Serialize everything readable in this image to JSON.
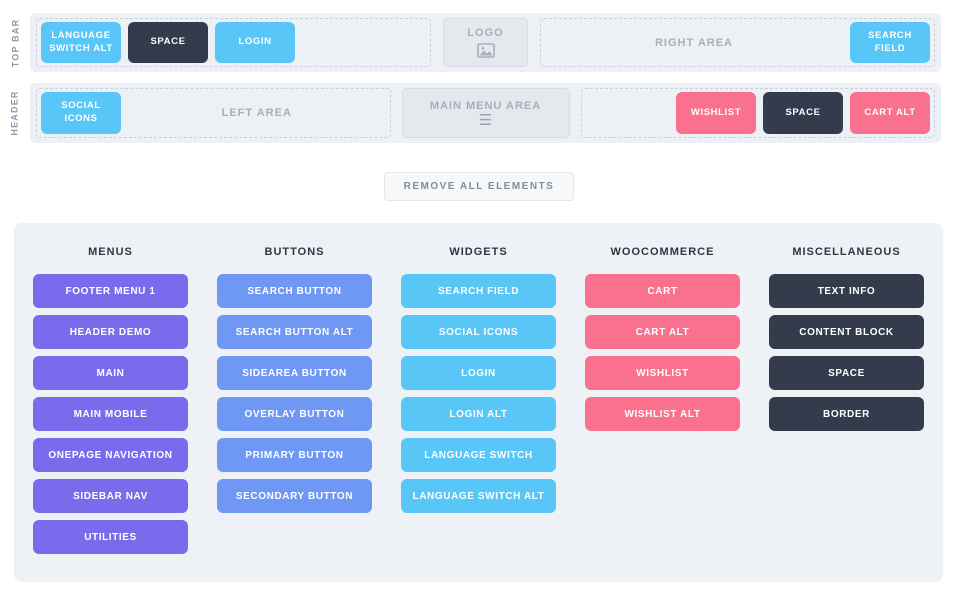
{
  "colors": {
    "widget_lightblue": "#58c7f7",
    "menu_purple": "#7b6bec",
    "button_blue": "#6e98f3",
    "woocommerce_pink": "#f9718e",
    "misc_dark": "#333b4d",
    "panel_background": "#eef1f5",
    "bar_background": "#edf0f4",
    "placeholder_text": "#a7afbc"
  },
  "topbar": {
    "label": "TOP BAR",
    "left_zone": {
      "elements": [
        {
          "label": "LANGUAGE SWITCH ALT",
          "color": "lightblue"
        },
        {
          "label": "SPACE",
          "color": "dark"
        },
        {
          "label": "LOGIN",
          "color": "lightblue"
        }
      ]
    },
    "logo": {
      "label": "LOGO"
    },
    "right_zone": {
      "placeholder": "RIGHT AREA",
      "elements": [
        {
          "label": "SEARCH FIELD",
          "color": "lightblue"
        }
      ]
    }
  },
  "header": {
    "label": "HEADER",
    "left_zone": {
      "placeholder": "LEFT AREA",
      "elements": [
        {
          "label": "SOCIAL ICONS",
          "color": "lightblue"
        }
      ]
    },
    "main_menu": {
      "label": "MAIN MENU AREA",
      "icon": "hamburger-icon"
    },
    "right_zone": {
      "elements": [
        {
          "label": "WISHLIST",
          "color": "pink"
        },
        {
          "label": "SPACE",
          "color": "dark"
        },
        {
          "label": "CART ALT",
          "color": "pink"
        }
      ]
    }
  },
  "remove_button": {
    "label": "REMOVE ALL ELEMENTS"
  },
  "palette": {
    "columns": [
      {
        "title": "MENUS",
        "color": "purple",
        "items": [
          "FOOTER MENU 1",
          "HEADER DEMO",
          "MAIN",
          "MAIN MOBILE",
          "ONEPAGE NAVIGATION",
          "SIDEBAR NAV",
          "UTILITIES"
        ]
      },
      {
        "title": "BUTTONS",
        "color": "blue",
        "items": [
          "SEARCH BUTTON",
          "SEARCH BUTTON ALT",
          "SIDEAREA BUTTON",
          "OVERLAY BUTTON",
          "PRIMARY BUTTON",
          "SECONDARY BUTTON"
        ]
      },
      {
        "title": "WIDGETS",
        "color": "lightblue",
        "items": [
          "SEARCH FIELD",
          "SOCIAL ICONS",
          "LOGIN",
          "LOGIN ALT",
          "LANGUAGE SWITCH",
          "LANGUAGE SWITCH ALT"
        ]
      },
      {
        "title": "WOOCOMMERCE",
        "color": "pink",
        "items": [
          "CART",
          "CART ALT",
          "WISHLIST",
          "WISHLIST ALT"
        ]
      },
      {
        "title": "MISCELLANEOUS",
        "color": "dark",
        "items": [
          "TEXT INFO",
          "CONTENT BLOCK",
          "SPACE",
          "BORDER"
        ]
      }
    ]
  }
}
